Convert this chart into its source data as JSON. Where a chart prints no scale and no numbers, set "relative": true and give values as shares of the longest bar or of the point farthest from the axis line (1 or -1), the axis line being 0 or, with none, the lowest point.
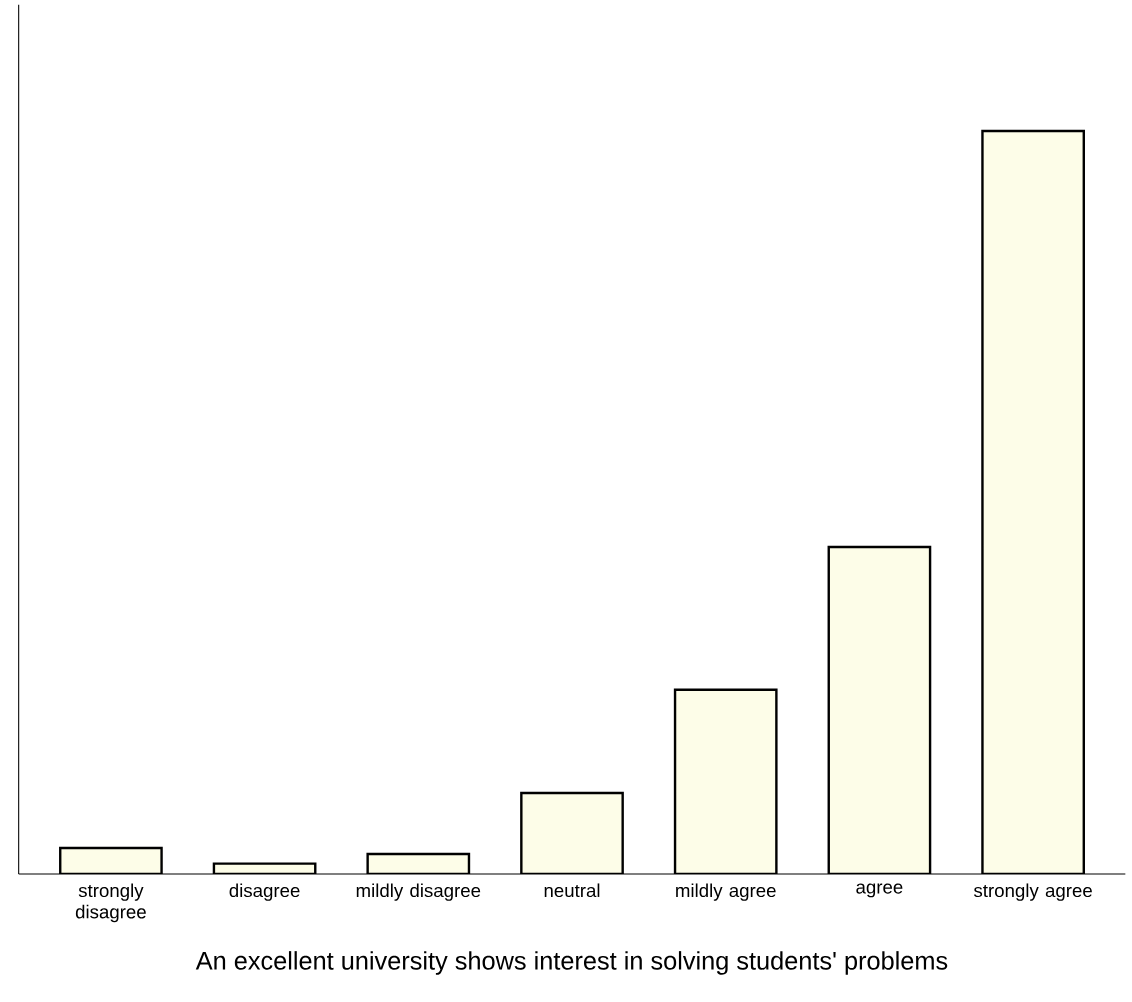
{
  "chart_data": {
    "type": "bar",
    "relative": true,
    "xlabel": "An excellent university shows interest in solving students' problems",
    "categories": [
      "strongly disagree",
      "disagree",
      "mildly disagree",
      "neutral",
      "mildly agree",
      "agree",
      "strongly agree"
    ],
    "values": [
      0.035,
      0.014,
      0.027,
      0.109,
      0.248,
      0.44,
      1
    ],
    "color": "#fdfde8"
  }
}
